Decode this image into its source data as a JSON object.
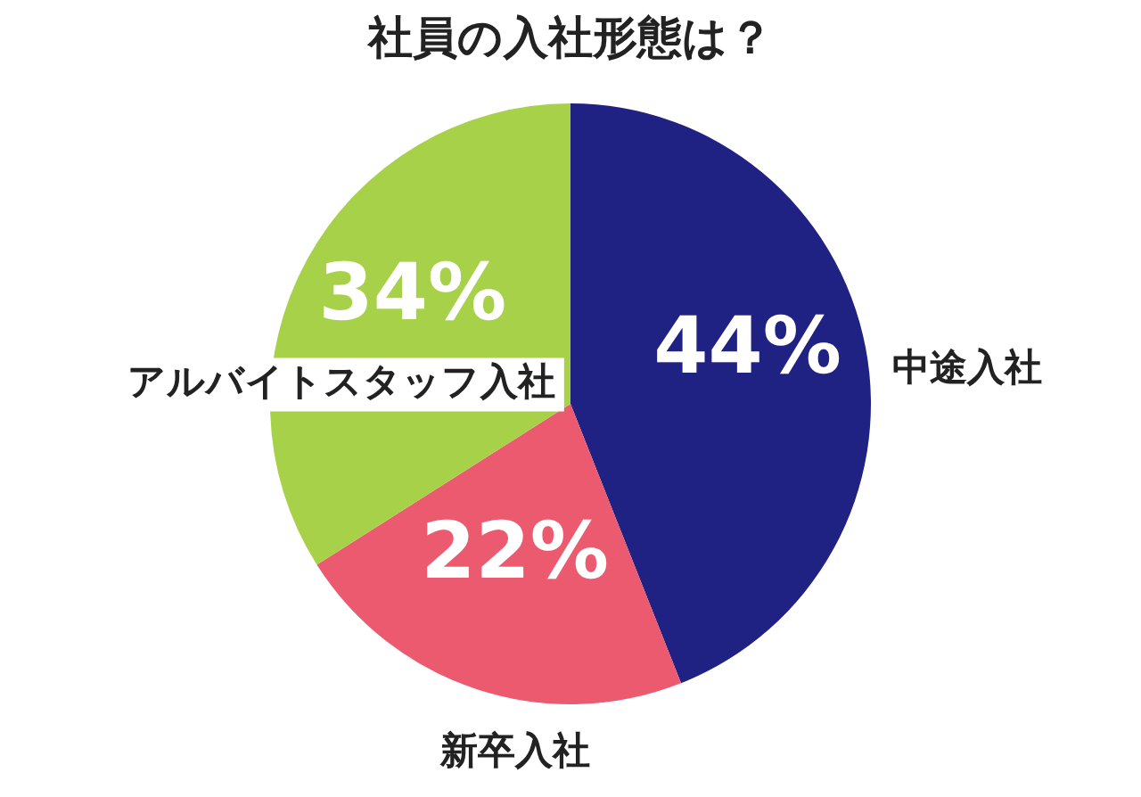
{
  "chart_data": {
    "type": "pie",
    "title": "社員の入社形態は？",
    "categories": [
      "中途入社",
      "新卒入社",
      "アルバイトスタッフ入社"
    ],
    "values": [
      44,
      22,
      34
    ],
    "colors": [
      "#1f2183",
      "#eb5a6e",
      "#a8d14a"
    ],
    "value_labels": [
      "44%",
      "22%",
      "34%"
    ]
  }
}
